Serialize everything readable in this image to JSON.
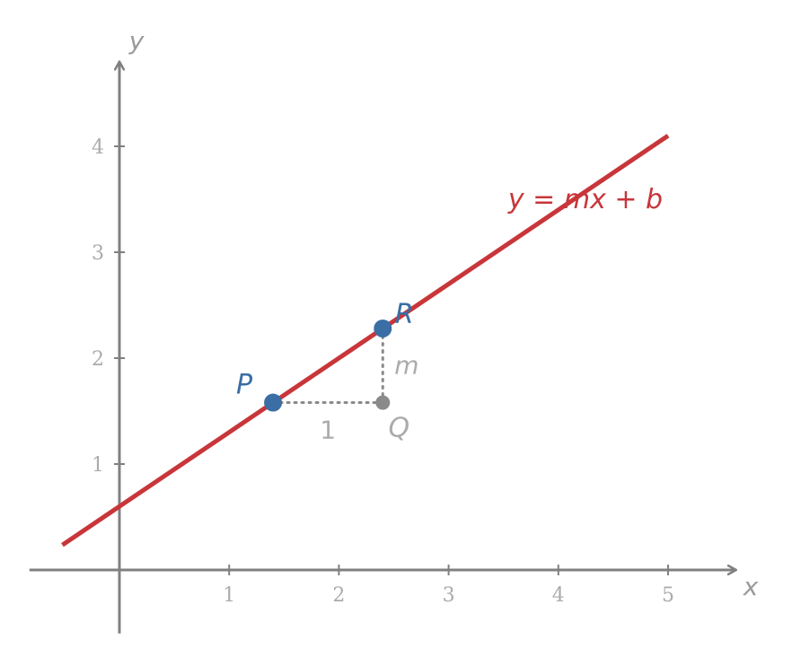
{
  "chart_data": {
    "type": "line",
    "title": "",
    "xlabel": "x",
    "ylabel": "y",
    "xlim": [
      -0.82,
      5.62
    ],
    "ylim": [
      -0.6,
      4.8
    ],
    "x_ticks": [
      1,
      2,
      3,
      4,
      5
    ],
    "y_ticks": [
      1,
      2,
      3,
      4
    ],
    "grid": false,
    "line": {
      "label": "y = mx + b",
      "slope": 0.7,
      "intercept": 0.6,
      "x_range": [
        -0.52,
        5.0
      ],
      "color": "#c8363a"
    },
    "points": [
      {
        "label": "P",
        "x": 1.4,
        "y": 1.58,
        "color": "#3a6ea5"
      },
      {
        "label": "R",
        "x": 2.4,
        "y": 2.28,
        "color": "#3a6ea5"
      },
      {
        "label": "Q",
        "x": 2.4,
        "y": 1.58,
        "color": "#8a8a8a"
      }
    ],
    "segments": [
      {
        "label": "1",
        "from": [
          1.4,
          1.58
        ],
        "to": [
          2.4,
          1.58
        ]
      },
      {
        "label": "m",
        "from": [
          2.4,
          1.58
        ],
        "to": [
          2.4,
          2.28
        ]
      }
    ],
    "axis_color": "#808080"
  }
}
